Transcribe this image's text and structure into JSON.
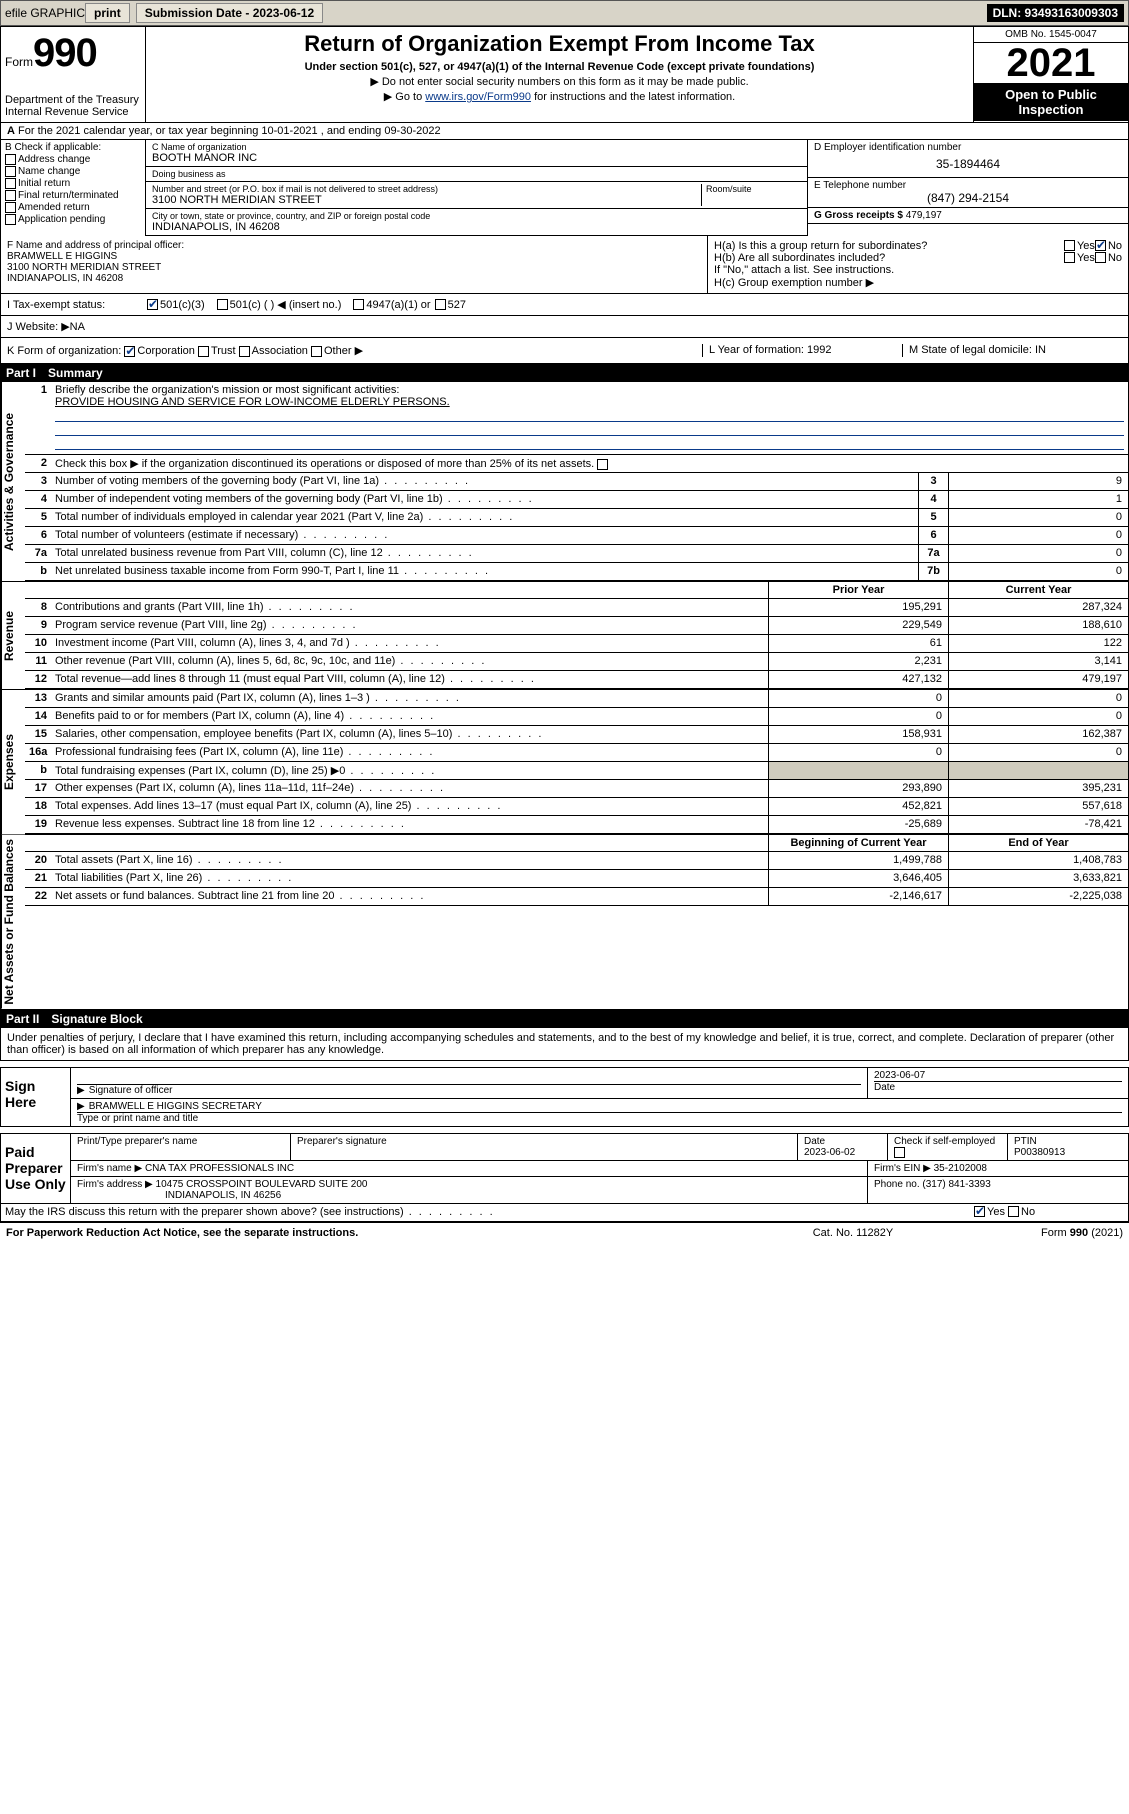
{
  "topbar": {
    "efile": "efile GRAPHIC",
    "print": "print",
    "sub_lbl": "Submission Date - ",
    "sub_val": "2023-06-12",
    "dln": "DLN: 93493163009303"
  },
  "header": {
    "form_word": "Form",
    "form_num": "990",
    "dept": "Department of the Treasury",
    "irs": "Internal Revenue Service",
    "title": "Return of Organization Exempt From Income Tax",
    "sub": "Under section 501(c), 527, or 4947(a)(1) of the Internal Revenue Code (except private foundations)",
    "note1": "▶ Do not enter social security numbers on this form as it may be made public.",
    "note2_pre": "▶ Go to ",
    "note2_link": "www.irs.gov/Form990",
    "note2_post": " for instructions and the latest information.",
    "omb": "OMB No. 1545-0047",
    "year": "2021",
    "open": "Open to Public Inspection"
  },
  "row_a": "For the 2021 calendar year, or tax year beginning 10-01-2021  , and ending 09-30-2022",
  "box_b": {
    "hdr": "B Check if applicable:",
    "items": [
      "Address change",
      "Name change",
      "Initial return",
      "Final return/terminated",
      "Amended return",
      "Application pending"
    ]
  },
  "box_c": {
    "name_lbl": "C Name of organization",
    "name": "BOOTH MANOR INC",
    "dba_lbl": "Doing business as",
    "dba": "",
    "addr_lbl": "Number and street (or P.O. box if mail is not delivered to street address)",
    "room_lbl": "Room/suite",
    "addr": "3100 NORTH MERIDIAN STREET",
    "city_lbl": "City or town, state or province, country, and ZIP or foreign postal code",
    "city": "INDIANAPOLIS, IN  46208"
  },
  "box_d": {
    "lbl": "D Employer identification number",
    "val": "35-1894464"
  },
  "box_e": {
    "lbl": "E Telephone number",
    "val": "(847) 294-2154"
  },
  "box_g": {
    "lbl": "G Gross receipts $ ",
    "val": "479,197"
  },
  "box_f": {
    "lbl": "F  Name and address of principal officer:",
    "name": "BRAMWELL E HIGGINS",
    "addr1": "3100 NORTH MERIDIAN STREET",
    "addr2": "INDIANAPOLIS, IN  46208"
  },
  "box_h": {
    "a": "H(a)  Is this a group return for subordinates?",
    "b": "H(b)  Are all subordinates included?",
    "bnote": "If \"No,\" attach a list. See instructions.",
    "c": "H(c)  Group exemption number ▶",
    "yes": "Yes",
    "no": "No"
  },
  "row_i": {
    "lbl": "I   Tax-exempt status:",
    "o1": "501(c)(3)",
    "o2": "501(c) (  ) ◀ (insert no.)",
    "o3": "4947(a)(1) or",
    "o4": "527"
  },
  "row_j": {
    "lbl": "J   Website: ▶ ",
    "val": "NA"
  },
  "row_k": {
    "lbl": "K Form of organization:",
    "o1": "Corporation",
    "o2": "Trust",
    "o3": "Association",
    "o4": "Other ▶",
    "l": "L Year of formation: 1992",
    "m": "M State of legal domicile: IN"
  },
  "part1": {
    "num": "Part I",
    "title": "Summary"
  },
  "summary": {
    "q1": "Briefly describe the organization's mission or most significant activities:",
    "mission": "PROVIDE HOUSING AND SERVICE FOR LOW-INCOME ELDERLY PERSONS.",
    "q2": "Check this box ▶      if the organization discontinued its operations or disposed of more than 25% of its net assets.",
    "lines_gov": [
      {
        "n": "3",
        "t": "Number of voting members of the governing body (Part VI, line 1a)",
        "box": "3",
        "v": "9"
      },
      {
        "n": "4",
        "t": "Number of independent voting members of the governing body (Part VI, line 1b)",
        "box": "4",
        "v": "1"
      },
      {
        "n": "5",
        "t": "Total number of individuals employed in calendar year 2021 (Part V, line 2a)",
        "box": "5",
        "v": "0"
      },
      {
        "n": "6",
        "t": "Total number of volunteers (estimate if necessary)",
        "box": "6",
        "v": "0"
      },
      {
        "n": "7a",
        "t": "Total unrelated business revenue from Part VIII, column (C), line 12",
        "box": "7a",
        "v": "0"
      },
      {
        "n": "b",
        "t": "Net unrelated business taxable income from Form 990-T, Part I, line 11",
        "box": "7b",
        "v": "0"
      }
    ],
    "hdr_prior": "Prior Year",
    "hdr_curr": "Current Year",
    "rev": [
      {
        "n": "8",
        "t": "Contributions and grants (Part VIII, line 1h)",
        "p": "195,291",
        "c": "287,324"
      },
      {
        "n": "9",
        "t": "Program service revenue (Part VIII, line 2g)",
        "p": "229,549",
        "c": "188,610"
      },
      {
        "n": "10",
        "t": "Investment income (Part VIII, column (A), lines 3, 4, and 7d )",
        "p": "61",
        "c": "122"
      },
      {
        "n": "11",
        "t": "Other revenue (Part VIII, column (A), lines 5, 6d, 8c, 9c, 10c, and 11e)",
        "p": "2,231",
        "c": "3,141"
      },
      {
        "n": "12",
        "t": "Total revenue—add lines 8 through 11 (must equal Part VIII, column (A), line 12)",
        "p": "427,132",
        "c": "479,197"
      }
    ],
    "exp": [
      {
        "n": "13",
        "t": "Grants and similar amounts paid (Part IX, column (A), lines 1–3 )",
        "p": "0",
        "c": "0"
      },
      {
        "n": "14",
        "t": "Benefits paid to or for members (Part IX, column (A), line 4)",
        "p": "0",
        "c": "0"
      },
      {
        "n": "15",
        "t": "Salaries, other compensation, employee benefits (Part IX, column (A), lines 5–10)",
        "p": "158,931",
        "c": "162,387"
      },
      {
        "n": "16a",
        "t": "Professional fundraising fees (Part IX, column (A), line 11e)",
        "p": "0",
        "c": "0"
      },
      {
        "n": "b",
        "t": "Total fundraising expenses (Part IX, column (D), line 25) ▶0",
        "p": "",
        "c": "",
        "shade": true
      },
      {
        "n": "17",
        "t": "Other expenses (Part IX, column (A), lines 11a–11d, 11f–24e)",
        "p": "293,890",
        "c": "395,231"
      },
      {
        "n": "18",
        "t": "Total expenses. Add lines 13–17 (must equal Part IX, column (A), line 25)",
        "p": "452,821",
        "c": "557,618"
      },
      {
        "n": "19",
        "t": "Revenue less expenses. Subtract line 18 from line 12",
        "p": "-25,689",
        "c": "-78,421"
      }
    ],
    "hdr_bgn": "Beginning of Current Year",
    "hdr_end": "End of Year",
    "net": [
      {
        "n": "20",
        "t": "Total assets (Part X, line 16)",
        "p": "1,499,788",
        "c": "1,408,783"
      },
      {
        "n": "21",
        "t": "Total liabilities (Part X, line 26)",
        "p": "3,646,405",
        "c": "3,633,821"
      },
      {
        "n": "22",
        "t": "Net assets or fund balances. Subtract line 21 from line 20",
        "p": "-2,146,617",
        "c": "-2,225,038"
      }
    ],
    "side_gov": "Activities & Governance",
    "side_rev": "Revenue",
    "side_exp": "Expenses",
    "side_net": "Net Assets or Fund Balances"
  },
  "part2": {
    "num": "Part II",
    "title": "Signature Block"
  },
  "sig": {
    "decl": "Under penalties of perjury, I declare that I have examined this return, including accompanying schedules and statements, and to the best of my knowledge and belief, it is true, correct, and complete. Declaration of preparer (other than officer) is based on all information of which preparer has any knowledge.",
    "sign_here": "Sign Here",
    "sig_officer": "Signature of officer",
    "date": "Date",
    "date_val": "2023-06-07",
    "typed": "BRAMWELL E HIGGINS  SECRETARY",
    "typed_lbl": "Type or print name and title",
    "paid": "Paid Preparer Use Only",
    "prep_name_lbl": "Print/Type preparer's name",
    "prep_sig_lbl": "Preparer's signature",
    "prep_date_lbl": "Date",
    "prep_date": "2023-06-02",
    "check_lbl": "Check       if self-employed",
    "ptin_lbl": "PTIN",
    "ptin": "P00380913",
    "firm_name_lbl": "Firm's name    ▶ ",
    "firm_name": "CNA TAX PROFESSIONALS INC",
    "firm_ein_lbl": "Firm's EIN ▶ ",
    "firm_ein": "35-2102008",
    "firm_addr_lbl": "Firm's address ▶ ",
    "firm_addr": "10475 CROSSPOINT BOULEVARD SUITE 200",
    "firm_addr2": "INDIANAPOLIS, IN  46256",
    "phone_lbl": "Phone no. ",
    "phone": "(317) 841-3393",
    "may": "May the IRS discuss this return with the preparer shown above? (see instructions)"
  },
  "footer": {
    "f1": "For Paperwork Reduction Act Notice, see the separate instructions.",
    "f2": "Cat. No. 11282Y",
    "f3": "Form 990 (2021)"
  }
}
